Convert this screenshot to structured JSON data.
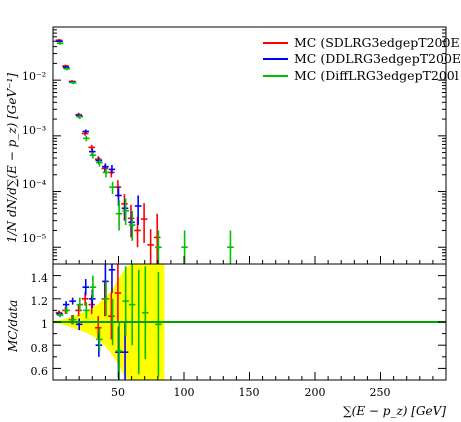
{
  "chart_data": [
    {
      "panel": "main",
      "type": "scatter",
      "yscale": "log",
      "xlim": [
        0,
        300
      ],
      "ylim": [
        5e-06,
        0.09
      ],
      "ylabel": "1/N dN/d∑(E − p_z) [GeV⁻¹]",
      "ytick_labels": [
        "10⁻⁵",
        "10⁻⁴",
        "10⁻³",
        "10⁻²"
      ],
      "legend_position": "top-right",
      "series": [
        {
          "name": "MC (SDLRG3edgepT200E",
          "color": "#ff0000",
          "x": [
            5,
            10,
            15,
            20,
            25,
            30,
            35,
            40,
            45,
            50,
            55,
            60,
            65,
            70,
            75,
            80
          ],
          "y": [
            0.052,
            0.018,
            0.0095,
            0.0024,
            0.0011,
            0.00062,
            0.00038,
            0.00026,
            0.00022,
            0.00012,
            6e-05,
            3.3e-05,
            2e-05,
            3.2e-05,
            1.1e-05,
            1.5e-05
          ],
          "err_low": [
            0.003,
            0.001,
            0.0005,
            0.0002,
            0.0001,
            7e-05,
            5e-05,
            4e-05,
            4e-05,
            4e-05,
            3e-05,
            1.8e-05,
            1e-05,
            2e-05,
            7e-06,
            1e-05
          ],
          "err_high": [
            0.003,
            0.001,
            0.0005,
            0.0002,
            0.0001,
            7e-05,
            5e-05,
            4e-05,
            4e-05,
            4e-05,
            3e-05,
            2.5e-05,
            1.5e-05,
            3e-05,
            1e-05,
            2.5e-05
          ]
        },
        {
          "name": "MC (DDLRG3edgepT200E",
          "color": "#0000ff",
          "x": [
            5,
            10,
            15,
            20,
            25,
            30,
            35,
            40,
            45,
            50,
            55,
            60,
            65
          ],
          "y": [
            0.05,
            0.017,
            0.0092,
            0.0023,
            0.0012,
            0.00052,
            0.00036,
            0.00028,
            0.00025,
            8.5e-05,
            5e-05,
            2.8e-05,
            5.5e-05
          ],
          "err_low": [
            0.003,
            0.001,
            0.0005,
            0.0002,
            0.0001,
            7e-05,
            5e-05,
            4e-05,
            4e-05,
            3e-05,
            2e-05,
            1.2e-05,
            3e-05
          ],
          "err_high": [
            0.003,
            0.001,
            0.0005,
            0.0002,
            0.0001,
            7e-05,
            5e-05,
            4e-05,
            5e-05,
            4e-05,
            2e-05,
            1.5e-05,
            3e-05
          ]
        },
        {
          "name": "MC (DiffLRG3edgepT200l",
          "color": "#00c000",
          "x": [
            5,
            10,
            15,
            20,
            25,
            30,
            35,
            40,
            45,
            50,
            55,
            60,
            80,
            100,
            135
          ],
          "y": [
            0.046,
            0.016,
            0.009,
            0.0022,
            0.0009,
            0.00045,
            0.00033,
            0.00022,
            0.00012,
            4e-05,
            4.5e-05,
            2.5e-05,
            1e-05,
            1e-05,
            1e-05
          ],
          "err_low": [
            0.003,
            0.001,
            0.0005,
            0.0002,
            0.0001,
            6e-05,
            5e-05,
            4e-05,
            3e-05,
            2e-05,
            2e-05,
            1.2e-05,
            5e-06,
            5e-06,
            5e-06
          ],
          "err_high": [
            0.003,
            0.001,
            0.0005,
            0.0002,
            0.0001,
            6e-05,
            5e-05,
            4e-05,
            3e-05,
            3e-05,
            3e-05,
            2e-05,
            1e-05,
            1e-05,
            1e-05
          ]
        }
      ]
    },
    {
      "panel": "ratio",
      "type": "scatter",
      "xlim": [
        0,
        300
      ],
      "ylim": [
        0.5,
        1.5
      ],
      "xlabel": "∑(E − p_z) [GeV]",
      "ylabel": "MC/data",
      "xtick_labels": [
        "50",
        "100",
        "150",
        "200",
        "250"
      ],
      "ytick_labels": [
        "0.6",
        "0.8",
        "1",
        "1.2",
        "1.4"
      ],
      "reference_line": 1,
      "band": {
        "color": "#ffff00",
        "x": [
          0,
          5,
          10,
          15,
          20,
          25,
          30,
          35,
          40,
          45,
          50,
          55,
          60,
          65,
          70,
          75,
          80,
          85
        ],
        "low": [
          0.99,
          0.985,
          0.97,
          0.95,
          0.93,
          0.91,
          0.88,
          0.84,
          0.79,
          0.72,
          0.63,
          0.52,
          0.5,
          0.5,
          0.5,
          0.5,
          0.5,
          0.5
        ],
        "high": [
          1.01,
          1.015,
          1.03,
          1.05,
          1.07,
          1.09,
          1.12,
          1.16,
          1.21,
          1.28,
          1.37,
          1.46,
          1.5,
          1.5,
          1.5,
          1.5,
          1.5,
          1.5
        ]
      },
      "series": [
        {
          "name": "MC (SDLRG3edgepT200E",
          "color": "#ff0000",
          "x": [
            5,
            10,
            15,
            20,
            25,
            30,
            35,
            40,
            45,
            50
          ],
          "y": [
            1.08,
            1.1,
            1.02,
            1.1,
            1.2,
            1.15,
            0.95,
            1.2,
            1.05,
            1.25
          ],
          "err_low": [
            0.02,
            0.03,
            0.04,
            0.05,
            0.06,
            0.08,
            0.1,
            0.15,
            0.2,
            0.25
          ],
          "err_high": [
            0.02,
            0.03,
            0.04,
            0.05,
            0.06,
            0.08,
            0.1,
            0.15,
            0.2,
            0.25
          ]
        },
        {
          "name": "MC (DDLRG3edgepT200E",
          "color": "#0000ff",
          "x": [
            5,
            10,
            15,
            20,
            25,
            30,
            35,
            40,
            45,
            50,
            55
          ],
          "y": [
            1.07,
            1.15,
            1.18,
            0.98,
            1.3,
            1.2,
            0.8,
            1.35,
            1.45,
            0.74,
            0.74
          ],
          "err_low": [
            0.02,
            0.03,
            0.03,
            0.05,
            0.07,
            0.08,
            0.1,
            0.15,
            0.2,
            0.22,
            0.25
          ],
          "err_high": [
            0.02,
            0.03,
            0.03,
            0.05,
            0.07,
            0.08,
            0.1,
            0.15,
            0.2,
            0.22,
            0.25
          ]
        },
        {
          "name": "MC (DiffLRG3edgepT200l",
          "color": "#00c000",
          "x": [
            5,
            10,
            15,
            20,
            25,
            30,
            35,
            40,
            45,
            50,
            55,
            60,
            65,
            70,
            80
          ],
          "y": [
            1.06,
            1.1,
            1.02,
            1.15,
            1.1,
            1.3,
            0.85,
            1.2,
            1.0,
            0.75,
            1.18,
            1.15,
            1.0,
            1.08,
            0.98
          ],
          "err_low": [
            0.02,
            0.03,
            0.04,
            0.06,
            0.07,
            0.1,
            0.1,
            0.15,
            0.2,
            0.25,
            0.3,
            0.35,
            0.45,
            0.4,
            0.45
          ],
          "err_high": [
            0.02,
            0.03,
            0.04,
            0.06,
            0.07,
            0.1,
            0.1,
            0.15,
            0.2,
            0.25,
            0.3,
            0.35,
            0.45,
            0.4,
            0.45
          ]
        }
      ]
    }
  ]
}
